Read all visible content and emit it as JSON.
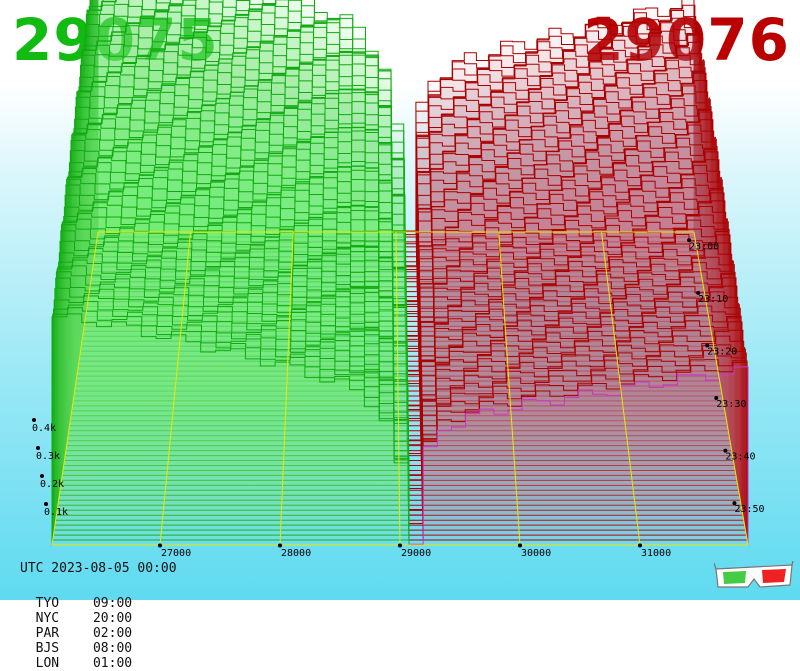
{
  "header": {
    "bid_price": "29075",
    "ask_price": "29076",
    "bid_color": "#11bb11",
    "ask_color": "#bb0000"
  },
  "footer": {
    "utc": "UTC 2023-08-05 00:00",
    "zones": [
      {
        "label": "TYO",
        "time": "09:00"
      },
      {
        "label": "NYC",
        "time": "20:00"
      },
      {
        "label": "PAR",
        "time": "02:00"
      },
      {
        "label": "BJS",
        "time": "08:00"
      },
      {
        "label": "LON",
        "time": "01:00"
      }
    ]
  },
  "icons": {
    "glasses": "3d-glasses-icon"
  },
  "chart_data": {
    "type": "area",
    "title": "",
    "x_ticks": [
      "27000",
      "28000",
      "29000",
      "30000",
      "31000"
    ],
    "xlim": [
      26100,
      31900
    ],
    "volume_ticks": [
      "0.1k",
      "0.2k",
      "0.3k",
      "0.4k"
    ],
    "volume_max": 0.5,
    "time_ticks": [
      "23:00",
      "23:10",
      "23:20",
      "23:30",
      "23:40",
      "23:50"
    ],
    "grid": true,
    "colors": {
      "bid": "#11aa11",
      "ask": "#aa0000",
      "latest_ask": "#cc33cc",
      "grid": "#e8e800"
    },
    "series": [
      {
        "name": "29075",
        "side": "bid",
        "points": [
          [
            26100,
            0.47
          ],
          [
            26500,
            0.46
          ],
          [
            27000,
            0.43
          ],
          [
            27500,
            0.4
          ],
          [
            28000,
            0.37
          ],
          [
            28500,
            0.33
          ],
          [
            28800,
            0.28
          ],
          [
            28950,
            0.16
          ],
          [
            29075,
            0.0
          ]
        ]
      },
      {
        "name": "29076",
        "side": "ask",
        "points": [
          [
            29076,
            0.0
          ],
          [
            29120,
            0.16
          ],
          [
            29300,
            0.24
          ],
          [
            29600,
            0.27
          ],
          [
            30000,
            0.29
          ],
          [
            30500,
            0.31
          ],
          [
            31000,
            0.33
          ],
          [
            31500,
            0.35
          ],
          [
            31900,
            0.36
          ]
        ]
      }
    ]
  }
}
